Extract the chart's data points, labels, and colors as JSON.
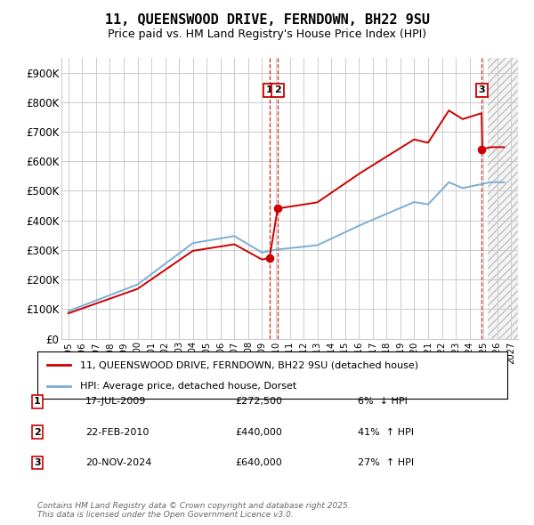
{
  "title": "11, QUEENSWOOD DRIVE, FERNDOWN, BH22 9SU",
  "subtitle": "Price paid vs. HM Land Registry's House Price Index (HPI)",
  "property_label": "11, QUEENSWOOD DRIVE, FERNDOWN, BH22 9SU (detached house)",
  "hpi_label": "HPI: Average price, detached house, Dorset",
  "transactions": [
    {
      "num": 1,
      "date": "17-JUL-2009",
      "price": 272500,
      "pct": "6%",
      "dir": "↓",
      "x": 2009.54
    },
    {
      "num": 2,
      "date": "22-FEB-2010",
      "price": 440000,
      "pct": "41%",
      "dir": "↑",
      "x": 2010.13
    },
    {
      "num": 3,
      "date": "20-NOV-2024",
      "price": 640000,
      "pct": "27%",
      "dir": "↑",
      "x": 2024.88
    }
  ],
  "property_color": "#cc0000",
  "hpi_color": "#7aaed6",
  "background_color": "#ffffff",
  "grid_color": "#cccccc",
  "ytick_labels": [
    "£0",
    "£100K",
    "£200K",
    "£300K",
    "£400K",
    "£500K",
    "£600K",
    "£700K",
    "£800K",
    "£900K"
  ],
  "ytick_values": [
    0,
    100000,
    200000,
    300000,
    400000,
    500000,
    600000,
    700000,
    800000,
    900000
  ],
  "ylim": [
    0,
    950000
  ],
  "xlim_start": 1994.5,
  "xlim_end": 2027.5,
  "xtick_years": [
    1995,
    1996,
    1997,
    1998,
    1999,
    2000,
    2001,
    2002,
    2003,
    2004,
    2005,
    2006,
    2007,
    2008,
    2009,
    2010,
    2011,
    2012,
    2013,
    2014,
    2015,
    2016,
    2017,
    2018,
    2019,
    2020,
    2021,
    2022,
    2023,
    2024,
    2025,
    2026,
    2027
  ],
  "footer": "Contains HM Land Registry data © Crown copyright and database right 2025.\nThis data is licensed under the Open Government Licence v3.0.",
  "hatch_start": 2025.3,
  "future_end": 2027.5
}
